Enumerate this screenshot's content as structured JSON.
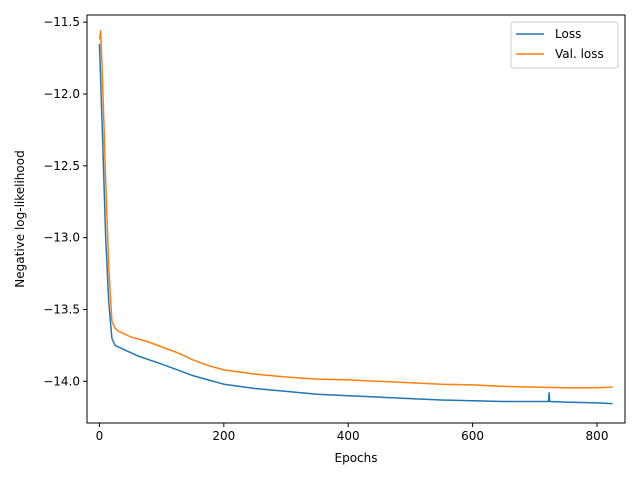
{
  "chart_data": {
    "type": "line",
    "title": "",
    "xlabel": "Epochs",
    "ylabel": "Negative log-likelihood",
    "xlim": [
      -20,
      845
    ],
    "ylim": [
      -14.29,
      -11.45
    ],
    "xticks": [
      0,
      200,
      400,
      600,
      800
    ],
    "yticks": [
      -11.5,
      -12.0,
      -12.5,
      -13.0,
      -13.5,
      -14.0
    ],
    "ytick_labels": [
      "−11.5",
      "−12.0",
      "−12.5",
      "−13.0",
      "−13.5",
      "−14.0"
    ],
    "grid": false,
    "legend_position": "top-right",
    "series": [
      {
        "name": "Loss",
        "color": "#1f77b4",
        "x": [
          0,
          5,
          10,
          15,
          20,
          25,
          30,
          40,
          50,
          60,
          80,
          100,
          125,
          150,
          175,
          200,
          250,
          300,
          350,
          400,
          450,
          500,
          550,
          600,
          650,
          700,
          722,
          723,
          724,
          750,
          800,
          825
        ],
        "y": [
          -11.65,
          -12.3,
          -13.0,
          -13.45,
          -13.7,
          -13.75,
          -13.76,
          -13.78,
          -13.8,
          -13.82,
          -13.85,
          -13.88,
          -13.92,
          -13.96,
          -13.99,
          -14.02,
          -14.05,
          -14.07,
          -14.09,
          -14.1,
          -14.11,
          -14.12,
          -14.13,
          -14.135,
          -14.14,
          -14.14,
          -14.14,
          -14.08,
          -14.14,
          -14.145,
          -14.15,
          -14.155
        ]
      },
      {
        "name": "Val. loss",
        "color": "#ff7f0e",
        "x": [
          0,
          2,
          5,
          10,
          15,
          20,
          25,
          30,
          40,
          50,
          75,
          100,
          125,
          150,
          175,
          200,
          250,
          300,
          350,
          400,
          450,
          500,
          550,
          600,
          650,
          700,
          750,
          800,
          825
        ],
        "y": [
          -11.62,
          -11.56,
          -11.9,
          -12.6,
          -13.2,
          -13.58,
          -13.63,
          -13.65,
          -13.67,
          -13.69,
          -13.72,
          -13.76,
          -13.8,
          -13.85,
          -13.89,
          -13.92,
          -13.95,
          -13.97,
          -13.985,
          -13.99,
          -14.0,
          -14.01,
          -14.02,
          -14.025,
          -14.035,
          -14.04,
          -14.045,
          -14.045,
          -14.04
        ]
      }
    ]
  }
}
